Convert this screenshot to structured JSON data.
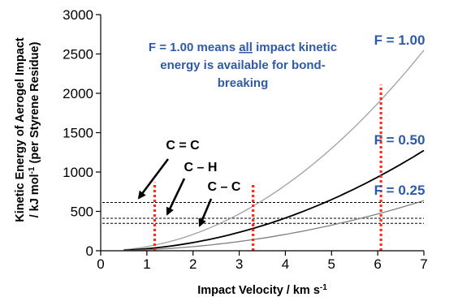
{
  "chart_data": {
    "type": "line",
    "xlabel": "Impact Velocity / km s",
    "xlabel_sup": "-1",
    "ylabel_line1": "Kinetic Energy of Aerogel Impact",
    "ylabel_line2_pre": "/ kJ mol",
    "ylabel_line2_sup": "-1",
    "ylabel_line2_post": " (per Styrene Residue)",
    "xlim": [
      0,
      7
    ],
    "ylim": [
      0,
      3000
    ],
    "xticks": [
      0,
      1,
      2,
      3,
      4,
      5,
      6,
      7
    ],
    "yticks": [
      0,
      500,
      1000,
      1500,
      2000,
      2500,
      3000
    ],
    "series": [
      {
        "name": "F = 1.00",
        "color": "#a0a0a0",
        "x": [
          0.5,
          1,
          2,
          3,
          4,
          5,
          6,
          7
        ],
        "y": [
          13,
          52,
          208,
          468,
          832,
          1300,
          1872,
          2548
        ]
      },
      {
        "name": "F = 0.50",
        "color": "#000000",
        "x": [
          0.5,
          1,
          2,
          3,
          4,
          5,
          6,
          7
        ],
        "y": [
          6.5,
          26,
          104,
          234,
          416,
          650,
          936,
          1274
        ]
      },
      {
        "name": "F = 0.25",
        "color": "#808080",
        "x": [
          0.5,
          1,
          2,
          3,
          4,
          5,
          6,
          7
        ],
        "y": [
          3.3,
          13,
          52,
          117,
          208,
          325,
          468,
          637
        ]
      }
    ],
    "bond_energies": [
      {
        "label": "C = C",
        "y": 614
      },
      {
        "label": "C – H",
        "y": 413
      },
      {
        "label": "C – C",
        "y": 348
      }
    ],
    "threshold_velocities": [
      {
        "x": 1.17,
        "y_top": 870,
        "f": "1.00"
      },
      {
        "x": 3.3,
        "y_top": 860,
        "f": "0.50"
      },
      {
        "x": 6.07,
        "y_top": 2110,
        "f": "0.25"
      }
    ],
    "annotation": "F = 1.00 means all impact kinetic energy is available for bond-breaking",
    "annotation_parts": {
      "line1_pre": "F = 1.00 means ",
      "line1_emph": "all",
      "line1_post": " impact kinetic",
      "line2": "energy is available for bond-",
      "line3": "breaking"
    },
    "colors": {
      "accent": "#2f5aa8",
      "threshold": "#ff2a1a",
      "bond_line": "#000000"
    }
  }
}
